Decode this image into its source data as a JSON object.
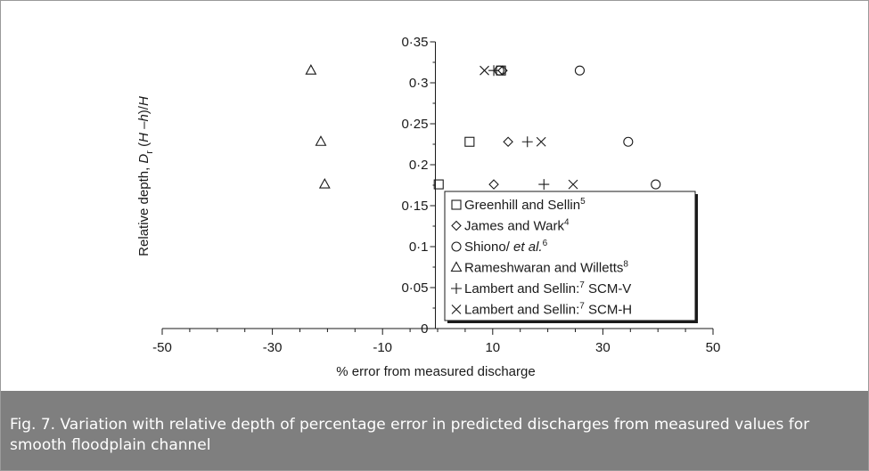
{
  "chart_data": {
    "type": "scatter",
    "xlabel": "% error from measured discharge",
    "ylabel_parts": [
      "Relative depth, ",
      "D",
      "r",
      " (",
      "H",
      " –",
      "h",
      ")/",
      "H"
    ],
    "xlim": [
      -50,
      50
    ],
    "ylim": [
      0,
      0.35
    ],
    "xticks": [
      -50,
      -30,
      -10,
      10,
      30,
      50
    ],
    "xtick_labels": [
      "-50",
      "-30",
      "-10",
      "10",
      "30",
      "50"
    ],
    "yticks": [
      0,
      0.05,
      0.1,
      0.15,
      0.2,
      0.25,
      0.3,
      0.35
    ],
    "ytick_labels": [
      "0",
      "0·05",
      "0·1",
      "0·15",
      "0·2",
      "0·25",
      "0·3",
      "0·35"
    ],
    "grid": false,
    "legend_position": "lower-right",
    "series": [
      {
        "name": "Greenhill and Sellin",
        "ref": "5",
        "marker": "square",
        "points": [
          [
            0.2,
            0.176
          ],
          [
            5.8,
            0.228
          ],
          [
            11.5,
            0.315
          ]
        ]
      },
      {
        "name": "James and Wark",
        "ref": "4",
        "marker": "diamond",
        "points": [
          [
            10.2,
            0.176
          ],
          [
            12.8,
            0.228
          ],
          [
            11.8,
            0.315
          ]
        ]
      },
      {
        "name": "Shiono/ et al.",
        "ref": "6",
        "marker": "circle",
        "points": [
          [
            39.6,
            0.176
          ],
          [
            34.6,
            0.228
          ],
          [
            25.8,
            0.315
          ],
          [
            11.2,
            0.315
          ]
        ]
      },
      {
        "name": "Rameshwaran and Willetts",
        "ref": "8",
        "marker": "triangle",
        "points": [
          [
            -20.5,
            0.176
          ],
          [
            -21.2,
            0.228
          ],
          [
            -23.0,
            0.315
          ]
        ]
      },
      {
        "name": "Lambert and Sellin:",
        "ref": "7",
        "suffix": " SCM-V",
        "marker": "plus",
        "points": [
          [
            19.3,
            0.176
          ],
          [
            16.3,
            0.228
          ],
          [
            10.2,
            0.315
          ]
        ]
      },
      {
        "name": "Lambert and Sellin:",
        "ref": "7",
        "suffix": " SCM-H",
        "marker": "cross",
        "points": [
          [
            24.6,
            0.176
          ],
          [
            18.8,
            0.228
          ],
          [
            8.5,
            0.315
          ]
        ]
      }
    ]
  },
  "caption": "Fig. 7. Variation with relative depth of percentage error in predicted discharges from measured values for smooth floodplain channel"
}
